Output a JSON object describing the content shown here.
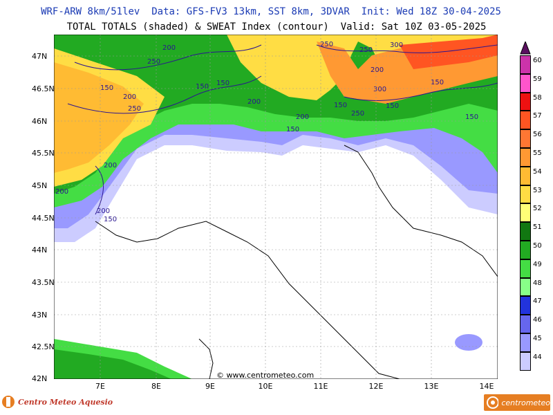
{
  "header": {
    "line1": "WRF-ARW 8km/51lev  Data: GFS-FV3 13km, SST 8km, 3DVAR  Init: Wed 18Z 30-04-2025",
    "line2": "TOTAL TOTALS (shaded) & SWEAT Index (contour)  Valid: Sat 10Z 03-05-2025"
  },
  "axes": {
    "lat_labels": [
      "47N",
      "46.5N",
      "46N",
      "45.5N",
      "45N",
      "44.5N",
      "44N",
      "43.5N",
      "43N",
      "42.5N",
      "42N"
    ],
    "lon_labels": [
      "7E",
      "8E",
      "9E",
      "10E",
      "11E",
      "12E",
      "13E",
      "14E"
    ]
  },
  "colorbar": {
    "levels": [
      "60",
      "59",
      "58",
      "57",
      "56",
      "55",
      "54",
      "53",
      "52",
      "51",
      "50",
      "49",
      "48",
      "47",
      "46",
      "45",
      "44"
    ],
    "colors": [
      "#cc33aa",
      "#ff55cc",
      "#ee1111",
      "#ff5522",
      "#ff7733",
      "#ff9933",
      "#ffbb33",
      "#ffdd44",
      "#ffff77",
      "#117711",
      "#22aa22",
      "#44dd44",
      "#88ff88",
      "#2233dd",
      "#6666ee",
      "#9999ff",
      "#ccccff"
    ]
  },
  "contour_labels": [
    "200",
    "250",
    "150",
    "150",
    "250",
    "250",
    "300",
    "200",
    "200",
    "250",
    "300",
    "200",
    "150",
    "200",
    "150",
    "250",
    "150",
    "150",
    "200",
    "150",
    "200",
    "150",
    "200",
    "150"
  ],
  "watermark": "© www.centrometeo.com",
  "footer": {
    "left_logo_text": "Centro Meteo Aquesio",
    "right_logo_text": "centrometeo"
  }
}
